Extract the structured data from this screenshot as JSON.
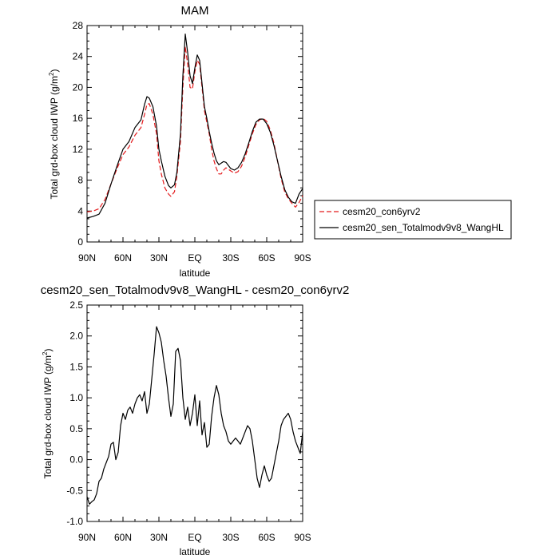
{
  "chart_data": [
    {
      "type": "line",
      "title": "MAM",
      "xlabel": "latitude",
      "ylabel": "Total grd-box cloud IWP (g/m2)",
      "ylabel_main": "Total grd-box cloud IWP (g/m",
      "ylabel_sup": "2",
      "ylabel_close": ")",
      "xlim": [
        90,
        -90
      ],
      "ylim": [
        0,
        28
      ],
      "xticks": [
        {
          "value": 90,
          "label": "90N"
        },
        {
          "value": 60,
          "label": "60N"
        },
        {
          "value": 30,
          "label": "30N"
        },
        {
          "value": 0,
          "label": "EQ"
        },
        {
          "value": -30,
          "label": "30S"
        },
        {
          "value": -60,
          "label": "60S"
        },
        {
          "value": -90,
          "label": "90S"
        }
      ],
      "yticks": [
        {
          "value": 0,
          "label": "0"
        },
        {
          "value": 4,
          "label": "4"
        },
        {
          "value": 8,
          "label": "8"
        },
        {
          "value": 12,
          "label": "12"
        },
        {
          "value": 16,
          "label": "16"
        },
        {
          "value": 20,
          "label": "20"
        },
        {
          "value": 24,
          "label": "24"
        },
        {
          "value": 28,
          "label": "28"
        }
      ],
      "legend_position": "right-bottom",
      "series": [
        {
          "name": "cesm20_con6yrv2",
          "color": "#e41a1c",
          "dash": "dashed",
          "x": [
            90,
            85,
            80,
            75,
            70,
            65,
            60,
            55,
            50,
            45,
            42,
            40,
            38,
            35,
            32,
            30,
            28,
            25,
            22,
            20,
            17,
            15,
            12,
            10,
            8,
            6,
            4,
            2,
            0,
            -2,
            -4,
            -6,
            -8,
            -10,
            -12,
            -14,
            -16,
            -18,
            -20,
            -22,
            -24,
            -26,
            -28,
            -30,
            -33,
            -36,
            -39,
            -42,
            -45,
            -48,
            -51,
            -54,
            -57,
            -60,
            -63,
            -66,
            -69,
            -72,
            -75,
            -78,
            -81,
            -84,
            -87,
            -90
          ],
          "y": [
            3.9,
            4.0,
            4.3,
            5.5,
            7.5,
            9.5,
            11.3,
            12.3,
            13.8,
            14.8,
            16.5,
            17.8,
            17.9,
            16.5,
            14.0,
            10.5,
            8.8,
            7.0,
            6.2,
            5.9,
            6.5,
            8.5,
            13.0,
            20.0,
            25.3,
            23.0,
            20.0,
            19.8,
            22.0,
            23.5,
            23.0,
            20.0,
            17.0,
            15.5,
            14.0,
            12.0,
            10.5,
            9.5,
            8.8,
            8.8,
            9.3,
            9.6,
            9.4,
            9.2,
            8.9,
            9.1,
            9.8,
            11.0,
            12.5,
            14.0,
            15.2,
            15.8,
            16.0,
            15.6,
            14.5,
            12.8,
            10.5,
            8.2,
            6.5,
            5.6,
            5.0,
            4.5,
            5.1,
            6.0
          ]
        },
        {
          "name": "cesm20_sen_Totalmodv9v8_WangHL",
          "color": "#000000",
          "dash": "solid",
          "x": [
            90,
            85,
            80,
            75,
            70,
            65,
            60,
            55,
            50,
            45,
            42,
            40,
            38,
            35,
            32,
            30,
            28,
            25,
            22,
            20,
            17,
            15,
            12,
            10,
            8,
            6,
            4,
            2,
            0,
            -2,
            -4,
            -6,
            -8,
            -10,
            -12,
            -14,
            -16,
            -18,
            -20,
            -22,
            -24,
            -26,
            -28,
            -30,
            -33,
            -36,
            -39,
            -42,
            -45,
            -48,
            -51,
            -54,
            -57,
            -60,
            -63,
            -66,
            -69,
            -72,
            -75,
            -78,
            -81,
            -84,
            -87,
            -90
          ],
          "y": [
            3.1,
            3.3,
            3.6,
            5.0,
            7.5,
            9.8,
            12.0,
            13.0,
            14.8,
            15.8,
            17.8,
            18.8,
            18.6,
            17.5,
            15.0,
            12.0,
            10.5,
            8.5,
            7.3,
            7.0,
            7.4,
            9.0,
            14.0,
            21.5,
            26.9,
            24.5,
            21.5,
            20.5,
            22.5,
            24.2,
            23.5,
            20.5,
            17.5,
            16.0,
            14.3,
            12.8,
            11.5,
            10.5,
            10.0,
            10.2,
            10.4,
            10.3,
            9.9,
            9.5,
            9.3,
            9.6,
            10.3,
            11.4,
            12.8,
            14.3,
            15.5,
            15.9,
            15.9,
            15.3,
            14.2,
            12.5,
            10.5,
            8.5,
            6.8,
            5.8,
            5.2,
            5.0,
            6.2,
            6.9
          ]
        }
      ]
    },
    {
      "type": "line",
      "title": "cesm20_sen_Totalmodv9v8_WangHL - cesm20_con6yrv2",
      "xlabel": "latitude",
      "ylabel": "Total grd-box cloud IWP (g/m2)",
      "ylabel_main": "Total grd-box cloud IWP (g/m",
      "ylabel_sup": "2",
      "ylabel_close": ")",
      "xlim": [
        90,
        -90
      ],
      "ylim": [
        -1.0,
        2.5
      ],
      "xticks": [
        {
          "value": 90,
          "label": "90N"
        },
        {
          "value": 60,
          "label": "60N"
        },
        {
          "value": 30,
          "label": "30N"
        },
        {
          "value": 0,
          "label": "EQ"
        },
        {
          "value": -30,
          "label": "30S"
        },
        {
          "value": -60,
          "label": "60S"
        },
        {
          "value": -90,
          "label": "90S"
        }
      ],
      "yticks": [
        {
          "value": -1.0,
          "label": "-1.0"
        },
        {
          "value": -0.5,
          "label": "-0.5"
        },
        {
          "value": 0.0,
          "label": "0.0"
        },
        {
          "value": 0.5,
          "label": "0.5"
        },
        {
          "value": 1.0,
          "label": "1.0"
        },
        {
          "value": 1.5,
          "label": "1.5"
        },
        {
          "value": 2.0,
          "label": "2.0"
        },
        {
          "value": 2.5,
          "label": "2.5"
        }
      ],
      "series": [
        {
          "name": "",
          "color": "#000000",
          "dash": "solid",
          "x": [
            90,
            88,
            86,
            84,
            82,
            80,
            78,
            76,
            74,
            72,
            70,
            68,
            66,
            64,
            62,
            60,
            58,
            56,
            54,
            52,
            50,
            48,
            46,
            44,
            42,
            40,
            38,
            36,
            34,
            32,
            30,
            28,
            26,
            24,
            22,
            20,
            18,
            16,
            14,
            12,
            10,
            8,
            6,
            4,
            2,
            0,
            -2,
            -4,
            -6,
            -8,
            -10,
            -12,
            -14,
            -16,
            -18,
            -20,
            -22,
            -24,
            -26,
            -28,
            -30,
            -32,
            -34,
            -36,
            -38,
            -40,
            -42,
            -44,
            -46,
            -48,
            -50,
            -52,
            -54,
            -56,
            -58,
            -60,
            -62,
            -64,
            -66,
            -68,
            -70,
            -72,
            -74,
            -76,
            -78,
            -80,
            -82,
            -84,
            -86,
            -88,
            -90
          ],
          "y": [
            -0.6,
            -0.72,
            -0.68,
            -0.65,
            -0.55,
            -0.35,
            -0.3,
            -0.15,
            -0.05,
            0.05,
            0.25,
            0.28,
            0.0,
            0.12,
            0.55,
            0.75,
            0.65,
            0.8,
            0.85,
            0.75,
            0.9,
            1.0,
            1.05,
            0.95,
            1.1,
            0.75,
            0.9,
            1.3,
            1.7,
            2.15,
            2.05,
            1.9,
            1.6,
            1.35,
            1.0,
            0.7,
            0.9,
            1.75,
            1.8,
            1.6,
            1.0,
            0.65,
            0.85,
            0.55,
            0.75,
            1.05,
            0.55,
            0.95,
            0.4,
            0.6,
            0.2,
            0.25,
            0.7,
            1.0,
            1.2,
            1.05,
            0.75,
            0.55,
            0.45,
            0.3,
            0.25,
            0.3,
            0.35,
            0.3,
            0.25,
            0.35,
            0.45,
            0.55,
            0.5,
            0.3,
            0.0,
            -0.3,
            -0.45,
            -0.25,
            -0.1,
            -0.25,
            -0.35,
            -0.3,
            -0.1,
            0.1,
            0.3,
            0.55,
            0.65,
            0.7,
            0.75,
            0.65,
            0.45,
            0.3,
            0.2,
            0.1,
            0.45
          ]
        }
      ]
    }
  ]
}
